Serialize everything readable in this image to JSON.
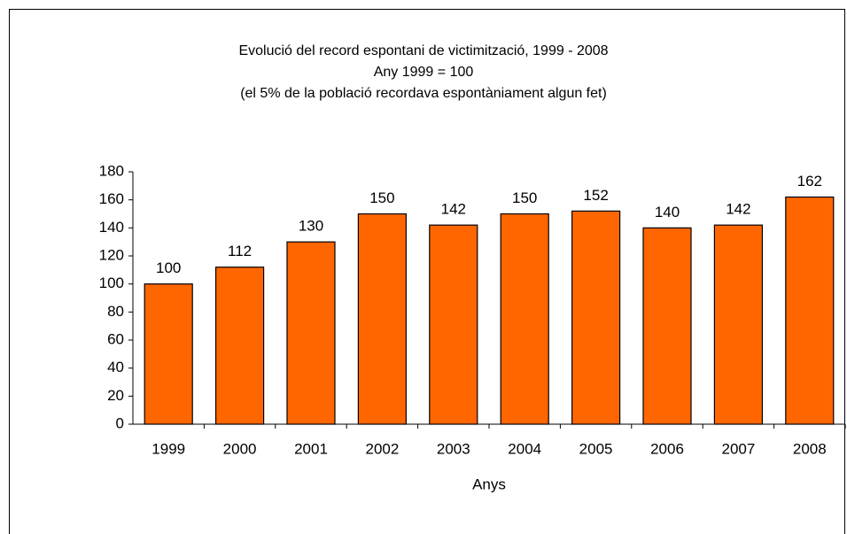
{
  "chart_data": {
    "type": "bar",
    "title": "Evolució del record espontani de victimització, 1999 - 2008",
    "subtitle": [
      "Any 1999 = 100",
      "(el 5% de la població recordava espontàniament algun fet)"
    ],
    "x_label": "Anys",
    "categories": [
      "1999",
      "2000",
      "2001",
      "2002",
      "2003",
      "2004",
      "2005",
      "2006",
      "2007",
      "2008"
    ],
    "values": [
      100,
      112,
      130,
      150,
      142,
      150,
      152,
      140,
      142,
      162
    ],
    "color": "#ff6600",
    "ylim": [
      0,
      180
    ],
    "yticks": [
      0,
      20,
      40,
      60,
      80,
      100,
      120,
      140,
      160,
      180
    ],
    "grid": false,
    "data_labels": true
  }
}
